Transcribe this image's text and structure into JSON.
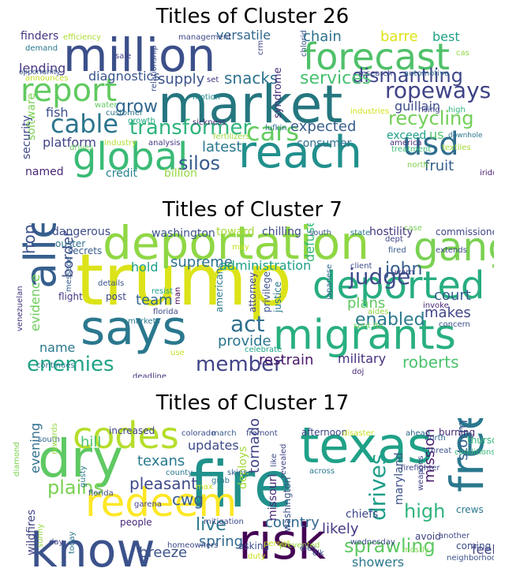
{
  "panels": [
    {
      "title": "Titles of Cluster 26",
      "words": [
        {
          "t": "market",
          "c": "#25767f"
        },
        {
          "t": "million",
          "c": "#3b4f8a"
        },
        {
          "t": "forecast",
          "c": "#4fc16a"
        },
        {
          "t": "reach",
          "c": "#21908c"
        },
        {
          "t": "global",
          "c": "#3aba76"
        },
        {
          "t": "report",
          "c": "#60ca60"
        },
        {
          "t": "usd",
          "c": "#2f6c8e"
        },
        {
          "t": "cable",
          "c": "#2b758e"
        },
        {
          "t": "cars",
          "c": "#62cb5f"
        },
        {
          "t": "ropeways",
          "c": "#404387"
        },
        {
          "t": "transformer",
          "c": "#2fb47c"
        },
        {
          "t": "dismantling",
          "c": "#3f4788"
        },
        {
          "t": "recycling",
          "c": "#72d058"
        },
        {
          "t": "services",
          "c": "#46c06f"
        },
        {
          "t": "snacks",
          "c": "#2d718e"
        },
        {
          "t": "grow",
          "c": "#31678e"
        },
        {
          "t": "silos",
          "c": "#375b8d"
        },
        {
          "t": "expected",
          "c": "#365d8d"
        },
        {
          "t": "supply",
          "c": "#3b528b"
        },
        {
          "t": "latest",
          "c": "#2a778e"
        },
        {
          "t": "diagnostics",
          "c": "#39558c"
        },
        {
          "t": "versatile",
          "c": "#31688e"
        },
        {
          "t": "chain",
          "c": "#2c718e"
        },
        {
          "t": "barre",
          "c": "#dde318"
        },
        {
          "t": "best",
          "c": "#1fa187"
        },
        {
          "t": "fruit",
          "c": "#355f8d"
        },
        {
          "t": "guillain",
          "c": "#3d4d8a"
        },
        {
          "t": "lending",
          "c": "#453882"
        },
        {
          "t": "fish",
          "c": "#3c4f8a"
        },
        {
          "t": "platform",
          "c": "#414487"
        },
        {
          "t": "software",
          "c": "#7ad151"
        },
        {
          "t": "security",
          "c": "#3e4989"
        },
        {
          "t": "named",
          "c": "#482677"
        },
        {
          "t": "finders",
          "c": "#46337f"
        },
        {
          "t": "syndrome",
          "c": "#472d7b"
        },
        {
          "t": "billion",
          "c": "#95d840"
        },
        {
          "t": "credit",
          "c": "#25838e"
        },
        {
          "t": "consumer",
          "c": "#2e6e8e"
        },
        {
          "t": "exceed",
          "c": "#1fa088"
        },
        {
          "t": "us",
          "c": "#52c569"
        },
        {
          "t": "efficiency",
          "c": "#addc30"
        },
        {
          "t": "management",
          "c": "#3e4a89"
        },
        {
          "t": "crm",
          "c": "#404688"
        },
        {
          "t": "chloride",
          "c": "#3b528b"
        },
        {
          "t": "research",
          "c": "#3f4788"
        },
        {
          "t": "automotive",
          "c": "#31688e"
        },
        {
          "t": "demand",
          "c": "#2a778e"
        },
        {
          "t": "opportunity",
          "c": "#39568c"
        },
        {
          "t": "announces",
          "c": "#c2df23"
        },
        {
          "t": "sale",
          "c": "#424186"
        },
        {
          "t": "relationship",
          "c": "#3c508b"
        },
        {
          "t": "set",
          "c": "#453781"
        },
        {
          "t": "motion",
          "c": "#23898e"
        },
        {
          "t": "water",
          "c": "#5ec962"
        },
        {
          "t": "customer",
          "c": "#2c728e"
        },
        {
          "t": "growth",
          "c": "#23a983"
        },
        {
          "t": "drives",
          "c": "#65cb5e"
        },
        {
          "t": "industry",
          "c": "#b5de2b"
        },
        {
          "t": "analysis",
          "c": "#443983"
        },
        {
          "t": "sickness",
          "c": "#472c7a"
        },
        {
          "t": "fertilizers",
          "c": "#9bd93c"
        },
        {
          "t": "lufkin",
          "c": "#2e6f8e"
        },
        {
          "t": "industries",
          "c": "#d2e21b"
        },
        {
          "t": "rising",
          "c": "#404588"
        },
        {
          "t": "high",
          "c": "#31b57b"
        },
        {
          "t": "downhole",
          "c": "#2c738e"
        },
        {
          "t": "america",
          "c": "#46327e"
        },
        {
          "t": "treatment",
          "c": "#3aba76"
        },
        {
          "t": "textiles",
          "c": "#a2da37"
        },
        {
          "t": "north",
          "c": "#7fd34e"
        },
        {
          "t": "iridous",
          "c": "#481f70"
        },
        {
          "t": "cas",
          "c": "#90d743"
        }
      ]
    },
    {
      "title": "Titles of Cluster 7",
      "words": [
        {
          "t": "trump",
          "c": "#dce319"
        },
        {
          "t": "deportation",
          "c": "#8fd744"
        },
        {
          "t": "gang",
          "c": "#7ad151"
        },
        {
          "t": "alien",
          "c": "#355f8d"
        },
        {
          "t": "deported",
          "c": "#27ad81"
        },
        {
          "t": "says",
          "c": "#2a788e"
        },
        {
          "t": "migrants",
          "c": "#29af7f"
        },
        {
          "t": "judge",
          "c": "#3e4a89"
        },
        {
          "t": "act",
          "c": "#2e6e8e"
        },
        {
          "t": "enemies",
          "c": "#20a386"
        },
        {
          "t": "member",
          "c": "#414487"
        },
        {
          "t": "hopes",
          "c": "#3b528b"
        },
        {
          "t": "john",
          "c": "#365d8d"
        },
        {
          "t": "supreme",
          "c": "#2c718e"
        },
        {
          "t": "administration",
          "c": "#1fa187"
        },
        {
          "t": "enabled",
          "c": "#2a788e"
        },
        {
          "t": "court",
          "c": "#365c8d"
        },
        {
          "t": "roberts",
          "c": "#4ac16d"
        },
        {
          "t": "restrain",
          "c": "#481769"
        },
        {
          "t": "military",
          "c": "#46307e"
        },
        {
          "t": "provide",
          "c": "#2b758e"
        },
        {
          "t": "team",
          "c": "#31688e"
        },
        {
          "t": "hold",
          "c": "#1f9e89"
        },
        {
          "t": "plans",
          "c": "#5ec962"
        },
        {
          "t": "border",
          "c": "#3d4e8a"
        },
        {
          "t": "evidence",
          "c": "#6ccd5a"
        },
        {
          "t": "name",
          "c": "#29798e"
        },
        {
          "t": "makes",
          "c": "#404588"
        },
        {
          "t": "defuse",
          "c": "#35b779"
        },
        {
          "t": "washington",
          "c": "#3b528b"
        },
        {
          "t": "dangerous",
          "c": "#3e4c8a"
        },
        {
          "t": "toward",
          "c": "#a2da37"
        },
        {
          "t": "chilling",
          "c": "#3d4d8a"
        },
        {
          "t": "hostility",
          "c": "#453781"
        },
        {
          "t": "commissioner",
          "c": "#404588"
        },
        {
          "t": "post",
          "c": "#3f4889"
        },
        {
          "t": "flight",
          "c": "#453882"
        },
        {
          "t": "secrets",
          "c": "#365d8d"
        },
        {
          "t": "ouster",
          "c": "#2e6e8e"
        },
        {
          "t": "south",
          "c": "#3b528b"
        },
        {
          "t": "state",
          "c": "#2b758e"
        },
        {
          "t": "case",
          "c": "#7ad151"
        },
        {
          "t": "dept",
          "c": "#404588"
        },
        {
          "t": "fired",
          "c": "#365c8d"
        },
        {
          "t": "extends",
          "c": "#3e4a89"
        },
        {
          "t": "warn",
          "c": "#414487"
        },
        {
          "t": "client",
          "c": "#3e4a89"
        },
        {
          "t": "invoke",
          "c": "#482878"
        },
        {
          "t": "aides",
          "c": "#95d840"
        },
        {
          "t": "sent ftc",
          "c": "#6ccd5a"
        },
        {
          "t": "concern",
          "c": "#3b528b"
        },
        {
          "t": "japanese",
          "c": "#31688e"
        },
        {
          "t": "americans",
          "c": "#2a778e"
        },
        {
          "t": "attorney",
          "c": "#414487"
        },
        {
          "t": "privilege",
          "c": "#3b528b"
        },
        {
          "t": "justice",
          "c": "#2a788e"
        },
        {
          "t": "may",
          "c": "#c8e020"
        },
        {
          "t": "resist",
          "c": "#1fa187"
        },
        {
          "t": "florida",
          "c": "#3e4a89"
        },
        {
          "t": "markets",
          "c": "#2a778e"
        },
        {
          "t": "details",
          "c": "#3b528b"
        },
        {
          "t": "message",
          "c": "#365d8d"
        },
        {
          "t": "venezuelan",
          "c": "#453781"
        },
        {
          "t": "continues",
          "c": "#2a778e"
        },
        {
          "t": "celebrate",
          "c": "#1fa187"
        },
        {
          "t": "doj",
          "c": "#482878"
        },
        {
          "t": "use",
          "c": "#c8e020"
        },
        {
          "t": "deadline",
          "c": "#46307e"
        },
        {
          "t": "man",
          "c": "#440154"
        }
      ]
    },
    {
      "title": "Titles of Cluster 17",
      "words": [
        {
          "t": "fire",
          "c": "#21918c"
        },
        {
          "t": "texas",
          "c": "#1fa187"
        },
        {
          "t": "dry",
          "c": "#5ec962"
        },
        {
          "t": "codes",
          "c": "#b5de2b"
        },
        {
          "t": "know",
          "c": "#3b528b"
        },
        {
          "t": "redeem",
          "c": "#fde725"
        },
        {
          "t": "risk",
          "c": "#440154"
        },
        {
          "t": "free",
          "c": "#2a788e"
        },
        {
          "t": "plains",
          "c": "#7ad151"
        },
        {
          "t": "cwg",
          "c": "#365c8d"
        },
        {
          "t": "pleasant",
          "c": "#3e4a89"
        },
        {
          "t": "storm",
          "c": "#355f8d"
        },
        {
          "t": "drives",
          "c": "#1f9e89"
        },
        {
          "t": "high",
          "c": "#2fb47c"
        },
        {
          "t": "mission",
          "c": "#481a6c"
        },
        {
          "t": "live",
          "c": "#2a788e"
        },
        {
          "t": "likely",
          "c": "#453781"
        },
        {
          "t": "sprawling",
          "c": "#5ec962"
        },
        {
          "t": "country",
          "c": "#31688e"
        },
        {
          "t": "tornado",
          "c": "#414487"
        },
        {
          "t": "deploys",
          "c": "#a2da37"
        },
        {
          "t": "texans",
          "c": "#29798e"
        },
        {
          "t": "updates",
          "c": "#3e4c8a"
        },
        {
          "t": "evening",
          "c": "#2e6e8e"
        },
        {
          "t": "hill",
          "c": "#4ac16d"
        },
        {
          "t": "spring",
          "c": "#31688e"
        },
        {
          "t": "breeze",
          "c": "#3b528b"
        },
        {
          "t": "showers",
          "c": "#2a788e"
        },
        {
          "t": "feel",
          "c": "#414487"
        },
        {
          "t": "coming",
          "c": "#3d4e8a"
        },
        {
          "t": "thursday",
          "c": "#35b779"
        },
        {
          "t": "missouri",
          "c": "#482878"
        },
        {
          "t": "maryland",
          "c": "#3b528b"
        },
        {
          "t": "chiefs",
          "c": "#3e4a89"
        },
        {
          "t": "wildfires",
          "c": "#414487"
        },
        {
          "t": "people",
          "c": "#482878"
        },
        {
          "t": "asking",
          "c": "#3b528b"
        },
        {
          "t": "increased",
          "c": "#414487"
        },
        {
          "t": "colorado",
          "c": "#3d4e8a"
        },
        {
          "t": "march",
          "c": "#365d8d"
        },
        {
          "t": "fremont",
          "c": "#3e4a89"
        },
        {
          "t": "afternoon",
          "c": "#404588"
        },
        {
          "t": "disaster",
          "c": "#c8e020"
        },
        {
          "t": "ahead",
          "c": "#31688e"
        },
        {
          "t": "burning",
          "c": "#482878"
        },
        {
          "t": "county",
          "c": "#2a778e"
        },
        {
          "t": "mitigation",
          "c": "#3e4a89"
        },
        {
          "t": "washington",
          "c": "#3b528b"
        },
        {
          "t": "wednesday",
          "c": "#3e4a89"
        },
        {
          "t": "mostly",
          "c": "#7ad151"
        },
        {
          "t": "avoid",
          "c": "#414487"
        },
        {
          "t": "crews",
          "c": "#2a778e"
        },
        {
          "t": "south",
          "c": "#31688e"
        },
        {
          "t": "rewards",
          "c": "#95d840"
        },
        {
          "t": "gusty",
          "c": "#2a788e"
        },
        {
          "t": "florida",
          "c": "#3e4a89"
        },
        {
          "t": "garena",
          "c": "#414487"
        },
        {
          "t": "grab",
          "c": "#2a788e"
        },
        {
          "t": "skins",
          "c": "#355f8d"
        },
        {
          "t": "like",
          "c": "#3e4a89"
        },
        {
          "t": "revealed",
          "c": "#414487"
        },
        {
          "t": "across",
          "c": "#2a778e"
        },
        {
          "t": "north",
          "c": "#31688e"
        },
        {
          "t": "threat",
          "c": "#3b528b"
        },
        {
          "t": "firefighter",
          "c": "#3e4a89"
        },
        {
          "t": "weapons",
          "c": "#414487"
        },
        {
          "t": "conditions",
          "c": "#35b779"
        },
        {
          "t": "another",
          "c": "#3e4a89"
        },
        {
          "t": "neighborhood",
          "c": "#3b528b"
        },
        {
          "t": "persist",
          "c": "#c8e020"
        },
        {
          "t": "prevented",
          "c": "#95d840"
        },
        {
          "t": "dies",
          "c": "#3e4a89"
        },
        {
          "t": "elk",
          "c": "#3b528b"
        },
        {
          "t": "duty",
          "c": "#c8e020"
        },
        {
          "t": "homeowners",
          "c": "#3e4a89"
        },
        {
          "t": "today",
          "c": "#2a778e"
        },
        {
          "t": "sunny",
          "c": "#95d840"
        },
        {
          "t": "day",
          "c": "#414487"
        },
        {
          "t": "diamond",
          "c": "#7ad151"
        },
        {
          "t": "max",
          "c": "#c8e020"
        }
      ]
    }
  ]
}
